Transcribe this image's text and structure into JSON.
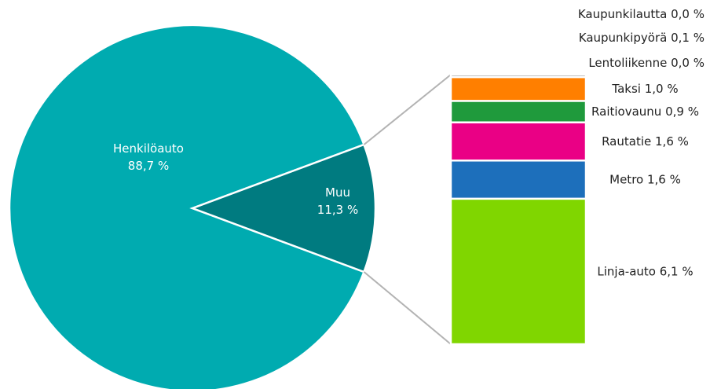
{
  "chart_data": {
    "type": "pie",
    "pie": {
      "slices": [
        {
          "label": "Henkilöauto",
          "value": 88.7,
          "value_text": "88,7 %",
          "color": "#00abb0"
        },
        {
          "label": "Muu",
          "value": 11.3,
          "value_text": "11,3 %",
          "color": "#007b80"
        }
      ]
    },
    "breakdown": {
      "of": "Muu",
      "segments": [
        {
          "label": "Linja-auto",
          "value": 6.1,
          "value_text": "6,1 %",
          "color": "#80d600"
        },
        {
          "label": "Metro",
          "value": 1.6,
          "value_text": "1,6 %",
          "color": "#1d6fbb"
        },
        {
          "label": "Rautatie",
          "value": 1.6,
          "value_text": "1,6 %",
          "color": "#ea0085"
        },
        {
          "label": "Raitiovaunu",
          "value": 0.9,
          "value_text": "0,9 %",
          "color": "#1f9a3c"
        },
        {
          "label": "Taksi",
          "value": 1.0,
          "value_text": "1,0 %",
          "color": "#ff7f00"
        },
        {
          "label": "Lentoliikenne",
          "value": 0.0,
          "value_text": "0,0 %",
          "color": "#888888"
        },
        {
          "label": "Kaupunkipyörä",
          "value": 0.1,
          "value_text": "0,1 %",
          "color": "#888888"
        },
        {
          "label": "Kaupunkilautta",
          "value": 0.0,
          "value_text": "0,0 %",
          "color": "#888888"
        }
      ]
    }
  }
}
